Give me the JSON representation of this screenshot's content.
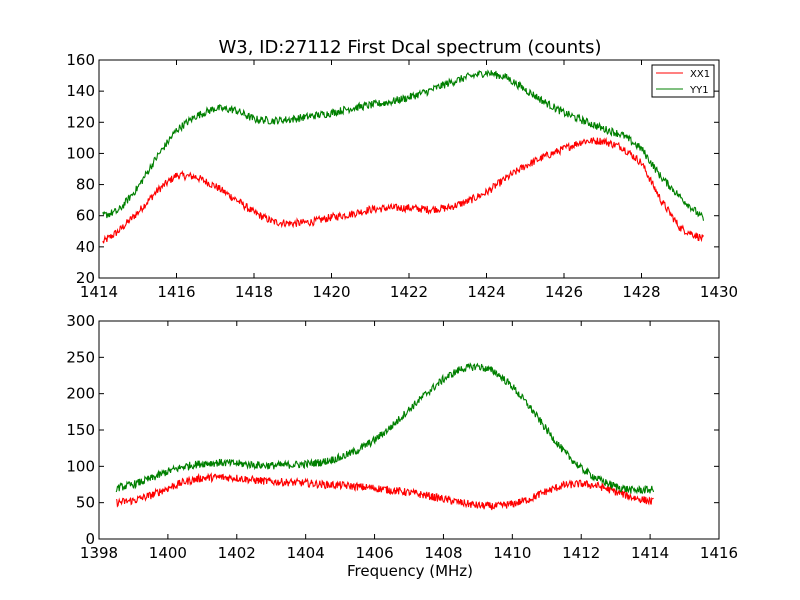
{
  "chart_data": [
    {
      "type": "line",
      "title": "W3, ID:27112 First Dcal spectrum (counts)",
      "xlabel": "",
      "ylabel": "",
      "xlim": [
        1414,
        1430
      ],
      "ylim": [
        20,
        160
      ],
      "xticks": [
        "1414",
        "1416",
        "1418",
        "1420",
        "1422",
        "1424",
        "1426",
        "1428",
        "1430"
      ],
      "yticks": [
        "20",
        "40",
        "60",
        "80",
        "100",
        "120",
        "140",
        "160"
      ],
      "legend": "top-right",
      "series": [
        {
          "name": "XX1",
          "color": "#ff0000",
          "x": [
            1414.1,
            1414.5,
            1415.0,
            1415.5,
            1416.0,
            1416.5,
            1417.0,
            1417.5,
            1418.0,
            1418.5,
            1419.0,
            1419.5,
            1420.0,
            1420.5,
            1421.0,
            1421.5,
            1422.0,
            1422.5,
            1423.0,
            1423.5,
            1424.0,
            1424.5,
            1425.0,
            1425.5,
            1426.0,
            1426.5,
            1427.0,
            1427.5,
            1428.0,
            1428.5,
            1429.0,
            1429.6
          ],
          "values": [
            43,
            50,
            62,
            76,
            86,
            85,
            79,
            71,
            62,
            56,
            55,
            56,
            59,
            61,
            64,
            65,
            65,
            64,
            65,
            69,
            75,
            84,
            92,
            98,
            103,
            108,
            108,
            104,
            94,
            70,
            52,
            45
          ]
        },
        {
          "name": "YY1",
          "color": "#008000",
          "x": [
            1414.1,
            1414.5,
            1415.0,
            1415.5,
            1416.0,
            1416.5,
            1417.0,
            1417.5,
            1418.0,
            1418.5,
            1419.0,
            1419.5,
            1420.0,
            1420.5,
            1421.0,
            1421.5,
            1422.0,
            1422.5,
            1423.0,
            1423.5,
            1424.0,
            1424.5,
            1425.0,
            1425.5,
            1426.0,
            1426.5,
            1427.0,
            1427.5,
            1428.0,
            1428.5,
            1429.0,
            1429.6
          ],
          "values": [
            60,
            63,
            78,
            98,
            115,
            124,
            129,
            128,
            122,
            121,
            122,
            124,
            126,
            129,
            131,
            133,
            136,
            140,
            145,
            149,
            152,
            149,
            141,
            133,
            126,
            121,
            116,
            112,
            103,
            85,
            72,
            58
          ]
        }
      ]
    },
    {
      "type": "line",
      "title": "",
      "xlabel": "Frequency (MHz)",
      "ylabel": "",
      "xlim": [
        1398,
        1416
      ],
      "ylim": [
        0,
        300
      ],
      "xticks": [
        "1398",
        "1400",
        "1402",
        "1404",
        "1406",
        "1408",
        "1410",
        "1412",
        "1414",
        "1416"
      ],
      "yticks": [
        "0",
        "50",
        "100",
        "150",
        "200",
        "250",
        "300"
      ],
      "series": [
        {
          "color": "#ff0000",
          "x": [
            1398.5,
            1399.0,
            1399.5,
            1400.0,
            1400.5,
            1401.0,
            1401.5,
            1402.0,
            1402.5,
            1403.0,
            1403.5,
            1404.0,
            1404.5,
            1405.0,
            1405.5,
            1406.0,
            1406.5,
            1407.0,
            1407.5,
            1408.0,
            1408.5,
            1409.0,
            1409.5,
            1410.0,
            1410.5,
            1411.0,
            1411.5,
            1412.0,
            1412.5,
            1413.0,
            1413.5,
            1414.1
          ],
          "values": [
            50,
            53,
            60,
            70,
            79,
            84,
            85,
            84,
            81,
            79,
            78,
            77,
            75,
            74,
            72,
            70,
            67,
            64,
            60,
            55,
            50,
            46,
            45,
            48,
            55,
            66,
            74,
            76,
            73,
            65,
            57,
            51
          ]
        },
        {
          "color": "#008000",
          "x": [
            1398.5,
            1399.0,
            1399.5,
            1400.0,
            1400.5,
            1401.0,
            1401.5,
            1402.0,
            1402.5,
            1403.0,
            1403.5,
            1404.0,
            1404.5,
            1405.0,
            1405.5,
            1406.0,
            1406.5,
            1407.0,
            1407.5,
            1408.0,
            1408.5,
            1409.0,
            1409.5,
            1410.0,
            1410.5,
            1411.0,
            1411.5,
            1412.0,
            1412.5,
            1413.0,
            1413.5,
            1414.1
          ],
          "values": [
            70,
            75,
            83,
            93,
            100,
            104,
            105,
            104,
            102,
            101,
            102,
            103,
            106,
            112,
            122,
            136,
            155,
            178,
            200,
            220,
            234,
            238,
            230,
            210,
            182,
            150,
            120,
            97,
            82,
            72,
            67,
            68
          ]
        }
      ]
    }
  ]
}
